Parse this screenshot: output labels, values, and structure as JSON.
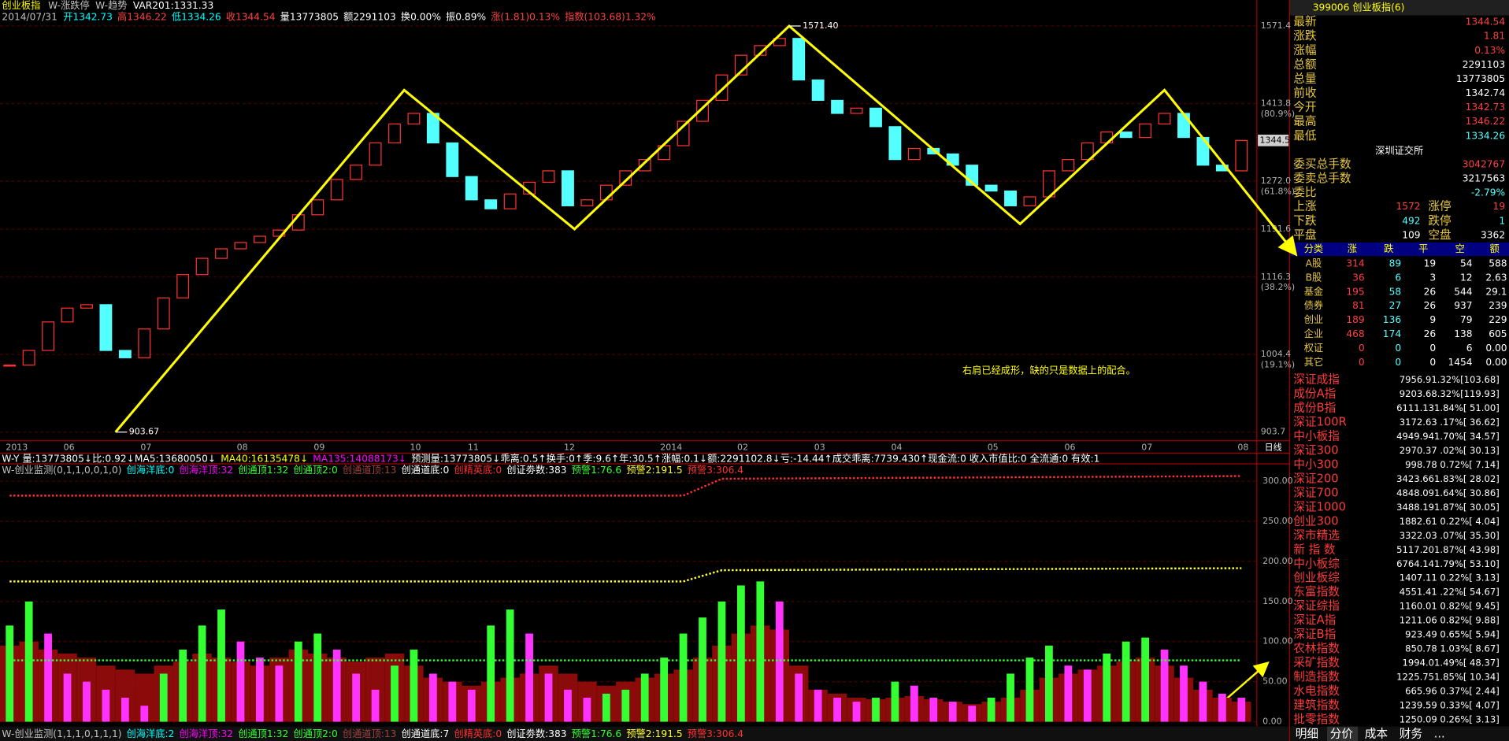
{
  "header": {
    "title": "创业板指",
    "tabs": [
      "W-涨跌停",
      "W-趋势"
    ],
    "var": "VAR201:1331.33",
    "date": "2014/07/31",
    "items": [
      {
        "text": "开1342.73",
        "color": "#00ffff"
      },
      {
        "text": "高1346.22",
        "color": "#ff4040"
      },
      {
        "text": "低1334.26",
        "color": "#00ffff"
      },
      {
        "text": "收1344.54",
        "color": "#ff4040"
      },
      {
        "text": "量13773805",
        "color": "#ffffff"
      },
      {
        "text": "额2291103",
        "color": "#ffffff"
      },
      {
        "text": "换0.00%",
        "color": "#ffffff"
      },
      {
        "text": "振0.89%",
        "color": "#ffffff"
      },
      {
        "text": "涨(1.81)0.13%",
        "color": "#ff4040"
      },
      {
        "text": "指数(103.68)1.32%",
        "color": "#ff4040"
      }
    ]
  },
  "chart_data": [
    {
      "type": "candlestick",
      "log": true,
      "up_color": "#ff3232",
      "down_color": "#54ffff",
      "categories": [
        "2013",
        null,
        null,
        "06",
        null,
        null,
        null,
        "07",
        null,
        null,
        null,
        null,
        "08",
        null,
        null,
        null,
        "09",
        null,
        null,
        null,
        null,
        "10",
        null,
        null,
        "11",
        null,
        null,
        null,
        null,
        "12",
        null,
        null,
        null,
        null,
        "2014",
        null,
        null,
        null,
        "02",
        null,
        null,
        null,
        "03",
        null,
        null,
        null,
        "04",
        null,
        null,
        null,
        null,
        "05",
        null,
        null,
        null,
        "06",
        null,
        null,
        null,
        "07",
        null,
        null,
        null,
        null,
        "08"
      ],
      "values": [
        990,
        1010,
        1050,
        1070,
        1075,
        1010,
        1000,
        1040,
        1085,
        1120,
        1145,
        1160,
        1170,
        1180,
        1190,
        1215,
        1240,
        1275,
        1300,
        1340,
        1375,
        1395,
        1340,
        1280,
        1240,
        1225,
        1250,
        1270,
        1290,
        1230,
        1240,
        1265,
        1290,
        1310,
        1335,
        1380,
        1420,
        1470,
        1510,
        1530,
        1545,
        1460,
        1420,
        1395,
        1405,
        1370,
        1310,
        1330,
        1320,
        1300,
        1265,
        1255,
        1230,
        1245,
        1290,
        1310,
        1340,
        1360,
        1350,
        1375,
        1395,
        1350,
        1300,
        1290,
        1344.54
      ],
      "ylim": [
        903.7,
        1571.4
      ],
      "yticks": [
        1571.4,
        1413.8,
        {
          "value": 1272,
          "label": "1272.0"
        },
        1191.6,
        1116.3,
        1004.4,
        903.7
      ],
      "fib_labels": [
        {
          "value": 1413.8,
          "label": "(80.9%)"
        },
        {
          "value": 1272,
          "label": "(61.8%)"
        },
        {
          "value": 1116.3,
          "label": "(38.2%)"
        },
        {
          "value": 1004.4,
          "label": "(19.1%)"
        }
      ],
      "current": {
        "value": 1344.54,
        "label": "1344.5"
      },
      "x_extra_label": "日线",
      "zigzag": {
        "color": "#ffff00",
        "x": [
          5.5,
          20.5,
          29.35,
          40.5,
          52.5,
          60,
          66.75
        ],
        "values": [
          903.67,
          1440,
          1191.6,
          1571.4,
          1200,
          1440,
          1154
        ]
      },
      "annotations": [
        {
          "value": 1571.4,
          "label": "1571.40",
          "x": 40.5
        },
        {
          "value": 903.67,
          "label": "903.67",
          "x": 5.5
        }
      ],
      "note": {
        "text": "右肩已经成形，缺的只是数据上的配合。",
        "x": 49.5,
        "value": 982
      }
    },
    {
      "type": "bar",
      "ylim": [
        0,
        310
      ],
      "yticks": [
        {
          "value": 0,
          "label": "0.00"
        },
        {
          "value": 50,
          "label": "50.00"
        },
        {
          "value": 100,
          "label": "100.00"
        },
        {
          "value": 150,
          "label": "150.00"
        },
        {
          "value": 200,
          "label": "200.00"
        },
        {
          "value": 250,
          "label": "250.00"
        },
        {
          "value": 300,
          "label": "300.00"
        }
      ],
      "base": {
        "color": "#8b0a0a",
        "values": [
          95,
          100,
          90,
          85,
          80,
          70,
          65,
          60,
          70,
          75,
          85,
          80,
          75,
          70,
          80,
          90,
          85,
          80,
          75,
          80,
          85,
          70,
          55,
          50,
          45,
          50,
          55,
          60,
          70,
          60,
          50,
          45,
          50,
          55,
          60,
          65,
          80,
          95,
          110,
          120,
          115,
          70,
          40,
          35,
          30,
          28,
          30,
          32,
          28,
          25,
          22,
          25,
          30,
          40,
          55,
          60,
          65,
          70,
          75,
          80,
          70,
          55,
          40,
          30,
          25
        ]
      },
      "signal": {
        "up_color": "#33ff33",
        "down_color": "#ff33ff",
        "values": [
          120,
          150,
          110,
          60,
          50,
          40,
          30,
          20,
          60,
          90,
          120,
          140,
          100,
          80,
          70,
          100,
          110,
          90,
          60,
          40,
          70,
          90,
          60,
          50,
          40,
          120,
          140,
          110,
          60,
          40,
          30,
          35,
          40,
          60,
          80,
          110,
          130,
          150,
          170,
          175,
          150,
          60,
          40,
          30,
          25,
          30,
          50,
          45,
          30,
          25,
          20,
          30,
          60,
          80,
          95,
          70,
          65,
          85,
          100,
          105,
          90,
          70,
          50,
          35,
          30
        ]
      },
      "levels": [
        {
          "color": "#33ff33",
          "x": [
            0,
            64
          ],
          "values": [
            76.6,
            76.6
          ]
        },
        {
          "color": "#ffff33",
          "x": [
            0,
            35,
            37,
            64
          ],
          "values": [
            175,
            175,
            189,
            191.5
          ]
        },
        {
          "color": "#ff3030",
          "x": [
            0,
            35,
            37,
            64
          ],
          "values": [
            282,
            282,
            303,
            306.4
          ]
        }
      ]
    }
  ],
  "indicator_line": [
    {
      "text": "W-Y 量:13773805↓比:0.92↓MA5:13680050↓",
      "color": "#ffffff"
    },
    {
      "text": "MA40:16135478↓",
      "color": "#ffff00"
    },
    {
      "text": "MA135:14088173↓",
      "color": "#ff00ff"
    },
    {
      "text": "预测量:13773805↓乖离:0.5↑换手:0↑季:9.6↑年:30.5↑涨幅:0.1↓额:2291102.8↓亏:-14.44↑成交乖离:7739.430↑现金流:0 收入市值比:0 全流通:0 有效:1",
      "color": "#ffffff"
    }
  ],
  "monitor_top": [
    {
      "text": "W-创业监测(0,1,1,0,0,1,0)",
      "color": "#c0c0c0"
    },
    {
      "text": "创海洋底:0",
      "color": "#00ffff"
    },
    {
      "text": "创海洋顶:32",
      "color": "#ff00ff"
    },
    {
      "text": "创通顶1:32",
      "color": "#33ff33"
    },
    {
      "text": "创通顶2:0",
      "color": "#33ff33"
    },
    {
      "text": "创通道顶:13",
      "color": "#a04040"
    },
    {
      "text": "创通道底:0",
      "color": "#ffffff"
    },
    {
      "text": "创精英底:0",
      "color": "#ff3030"
    },
    {
      "text": "创证劵数:383",
      "color": "#ffffff"
    },
    {
      "text": "预警1:76.6",
      "color": "#33ff33"
    },
    {
      "text": "预警2:191.5",
      "color": "#ffff33"
    },
    {
      "text": "预警3:306.4",
      "color": "#ff3030"
    }
  ],
  "monitor_bottom": [
    {
      "text": "W-创业监测(1,1,1,0,1,1,1)",
      "color": "#c0c0c0"
    },
    {
      "text": "创海洋底:2",
      "color": "#00ffff"
    },
    {
      "text": "创海洋顶:32",
      "color": "#ff00ff"
    },
    {
      "text": "创通顶1:32",
      "color": "#33ff33"
    },
    {
      "text": "创通顶2:0",
      "color": "#33ff33"
    },
    {
      "text": "创通道顶:13",
      "color": "#a04040"
    },
    {
      "text": "创通道底:7",
      "color": "#ffffff"
    },
    {
      "text": "创精英底:0",
      "color": "#ff3030"
    },
    {
      "text": "创证劵数:383",
      "color": "#ffffff"
    },
    {
      "text": "预警1:76.6",
      "color": "#33ff33"
    },
    {
      "text": "预警2:191.5",
      "color": "#ffff33"
    },
    {
      "text": "预警3:306.4",
      "color": "#ff3030"
    }
  ],
  "quote": {
    "title": "399006 创业板指(6)",
    "rows": [
      {
        "label": "最新",
        "value": "1344.54",
        "color": "#ff4040"
      },
      {
        "label": "涨跌",
        "value": "1.81",
        "color": "#ff4040"
      },
      {
        "label": "涨幅",
        "value": "0.13%",
        "color": "#ff4040"
      },
      {
        "label": "总额",
        "value": "2291103",
        "color": "#ffffff"
      },
      {
        "label": "总量",
        "value": "13773805",
        "color": "#ffffff"
      },
      {
        "label": "前收",
        "value": "1342.74",
        "color": "#ffffff"
      },
      {
        "label": "今开",
        "value": "1342.73",
        "color": "#ff4040"
      },
      {
        "label": "最高",
        "value": "1346.22",
        "color": "#ff4040"
      },
      {
        "label": "最低",
        "value": "1334.26",
        "color": "#54ffff"
      }
    ],
    "exchange": "深圳证交所",
    "orders": [
      {
        "label": "委买总手数",
        "value": "3042767",
        "color": "#ff4040"
      },
      {
        "label": "委卖总手数",
        "value": "3217563",
        "color": "#ffffff"
      },
      {
        "label": "委比",
        "value": "-2.79%",
        "color": "#54ffff"
      }
    ],
    "breadth": [
      [
        "上涨",
        "1572",
        "涨停",
        "19"
      ],
      [
        "下跌",
        "492",
        "跌停",
        "1"
      ],
      [
        "平盘",
        "109",
        "空盘",
        "3362"
      ]
    ]
  },
  "table": {
    "header": [
      "分类",
      "涨",
      "跌",
      "平",
      "空",
      "额"
    ],
    "rows": [
      [
        "A股",
        "314",
        "89",
        "19",
        "54",
        "588"
      ],
      [
        "B股",
        "36",
        "6",
        "3",
        "12",
        "2.63"
      ],
      [
        "基金",
        "195",
        "58",
        "26",
        "544",
        "29.1"
      ],
      [
        "债券",
        "81",
        "27",
        "26",
        "937",
        "239"
      ],
      [
        "创业",
        "189",
        "136",
        "9",
        "79",
        "229"
      ],
      [
        "企业",
        "468",
        "174",
        "26",
        "138",
        "605"
      ],
      [
        "权证",
        "0",
        "0",
        "0",
        "6",
        "0.00"
      ],
      [
        "其它",
        "0",
        "0",
        "0",
        "1454",
        "0.00"
      ]
    ]
  },
  "indices": [
    [
      "深证成指",
      "7956.91.32%[103.68]"
    ],
    [
      "成份A指",
      "9203.68.32%[119.93]"
    ],
    [
      "成份B指",
      "6111.131.84%[ 51.00]"
    ],
    [
      "深证100R",
      "3172.63 .17%[ 36.62]"
    ],
    [
      "中小板指",
      "4949.941.70%[ 34.57]"
    ],
    [
      "深证300",
      "2970.37 .02%[ 30.13]"
    ],
    [
      "中小300",
      "998.78 0.72%[ 7.14]"
    ],
    [
      "深证200",
      "3423.661.83%[ 28.02]"
    ],
    [
      "深证700",
      "4848.091.64%[ 30.86]"
    ],
    [
      "深证1000",
      "3488.191.87%[ 30.05]"
    ],
    [
      "创业300",
      "1882.61 0.22%[ 4.04]"
    ],
    [
      "深市精选",
      "3322.03 .07%[ 35.30]"
    ],
    [
      "新 指 数",
      "5117.201.87%[ 43.98]"
    ],
    [
      "中小板综",
      "6764.141.79%[ 53.10]"
    ],
    [
      "创业板综",
      "1407.11 0.22%[ 3.13]"
    ],
    [
      "东富指数",
      "4551.41 .22%[ 54.67]"
    ],
    [
      "深证综指",
      "1160.01 0.82%[ 9.45]"
    ],
    [
      "深证A指",
      "1211.06 0.82%[ 9.88]"
    ],
    [
      "深证B指",
      "923.49 0.65%[ 5.94]"
    ],
    [
      "农林指数",
      "850.78 1.03%[ 8.67]"
    ],
    [
      "采矿指数",
      "1994.01.49%[ 48.37]"
    ],
    [
      "制造指数",
      "1225.751.85%[ 10.34]"
    ],
    [
      "水电指数",
      "665.96 0.37%[ 2.44]"
    ],
    [
      "建筑指数",
      "1239.59 0.33%[ 4.07]"
    ],
    [
      "批零指数",
      "1250.09 0.26%[ 3.13]"
    ]
  ],
  "tabs": [
    "明细",
    "分价",
    "成本",
    "财务",
    "..."
  ]
}
